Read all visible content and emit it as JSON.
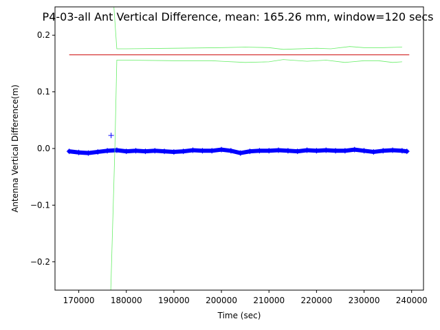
{
  "chart_data": {
    "type": "scatter",
    "title": "P4-03-all Ant Vertical Difference, mean: 165.26 mm, window=120 secs",
    "xlabel": "Time (sec)",
    "ylabel": "Antenna Vertical Difference(m)",
    "xlim": [
      165000,
      242500
    ],
    "ylim": [
      -0.25,
      0.25
    ],
    "xticks": [
      170000,
      180000,
      190000,
      200000,
      210000,
      220000,
      230000,
      240000
    ],
    "xtick_labels": [
      "170000",
      "180000",
      "190000",
      "200000",
      "210000",
      "220000",
      "230000",
      "240000"
    ],
    "yticks": [
      0.2,
      0.1,
      0.0,
      -0.1,
      -0.2
    ],
    "ytick_labels": [
      "0.2",
      "0.1",
      "0.0",
      "−0.1",
      "−0.2"
    ],
    "grid": false,
    "legend": "none",
    "series": [
      {
        "role": "measurements",
        "marker": "+",
        "color": "#0000ff",
        "x": [
          168000,
          170000,
          172000,
          174000,
          176000,
          178000,
          180000,
          182000,
          184000,
          186000,
          188000,
          190000,
          192000,
          194000,
          196000,
          198000,
          200000,
          202000,
          204000,
          206000,
          208000,
          210000,
          212000,
          214000,
          216000,
          218000,
          220000,
          222000,
          224000,
          226000,
          228000,
          230000,
          232000,
          234000,
          236000,
          238000,
          239000
        ],
        "values": [
          -0.005,
          -0.007,
          -0.008,
          -0.006,
          -0.004,
          -0.003,
          -0.005,
          -0.004,
          -0.005,
          -0.004,
          -0.005,
          -0.006,
          -0.005,
          -0.003,
          -0.004,
          -0.004,
          -0.002,
          -0.004,
          -0.008,
          -0.005,
          -0.004,
          -0.004,
          -0.003,
          -0.004,
          -0.005,
          -0.003,
          -0.004,
          -0.003,
          -0.004,
          -0.004,
          -0.002,
          -0.004,
          -0.006,
          -0.004,
          -0.003,
          -0.004,
          -0.005
        ],
        "outliers": [
          [
            176800,
            0.023
          ]
        ]
      },
      {
        "role": "mean",
        "color": "#cc0000",
        "x": [
          168000,
          239500
        ],
        "values": [
          0.1653,
          0.1653
        ]
      },
      {
        "role": "upper-bound",
        "color": "#66ee66",
        "x": [
          177300,
          178000,
          180000,
          190000,
          200000,
          205000,
          210000,
          213000,
          220000,
          223000,
          227000,
          230000,
          234000,
          238000
        ],
        "values": [
          0.26,
          0.176,
          0.176,
          0.177,
          0.178,
          0.179,
          0.178,
          0.175,
          0.177,
          0.176,
          0.18,
          0.178,
          0.178,
          0.179
        ]
      },
      {
        "role": "lower-bound",
        "color": "#66ee66",
        "x": [
          176700,
          177600,
          178000,
          180000,
          190000,
          198000,
          200000,
          205000,
          210000,
          213000,
          218000,
          222000,
          226000,
          230000,
          233000,
          236000,
          238000
        ],
        "values": [
          -0.26,
          0.0,
          0.156,
          0.156,
          0.155,
          0.155,
          0.154,
          0.152,
          0.153,
          0.157,
          0.154,
          0.156,
          0.152,
          0.155,
          0.155,
          0.152,
          0.153
        ]
      }
    ]
  }
}
